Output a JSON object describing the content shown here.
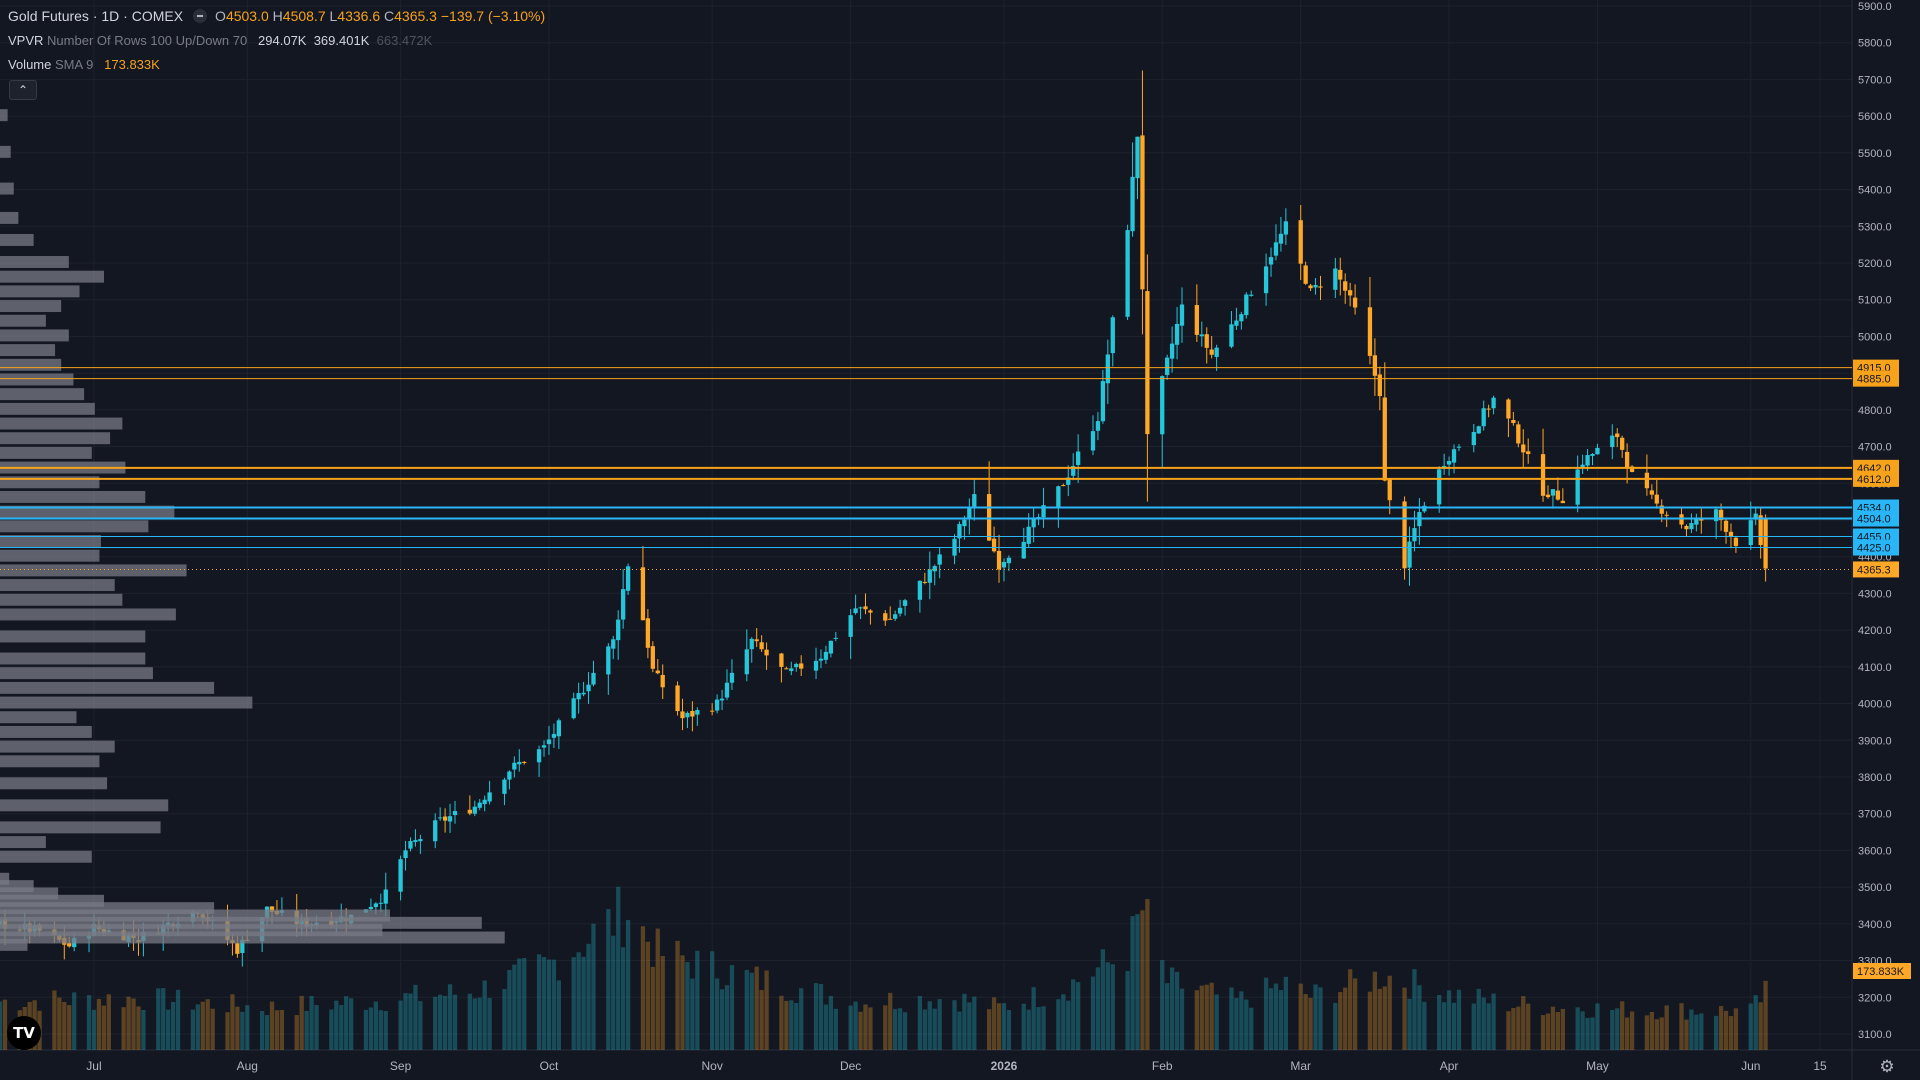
{
  "legend": {
    "symbol": "Gold Futures · 1D · COMEX",
    "ohlc": [
      {
        "k": "O",
        "v": "4503.0"
      },
      {
        "k": "H",
        "v": "4508.7"
      },
      {
        "k": "L",
        "v": "4336.6"
      },
      {
        "k": "C",
        "v": "4365.3"
      }
    ],
    "change": "−139.7 (−3.10%)",
    "vpvr_name": "VPVR",
    "vpvr_params": "Number Of Rows 100 Up/Down 70",
    "vpvr_values": [
      "294.07K",
      "369.401K"
    ],
    "vpvr_total": "663.472K",
    "volume_name": "Volume",
    "volume_params": "SMA 9",
    "volume_value": "173.833K"
  },
  "colors": {
    "background": "#131722",
    "up": "#26c6da",
    "down": "#ffa726",
    "grid": "#1e222d",
    "axis_text": "#b2b5be",
    "orange_line": "#f7a21b",
    "blue_line": "#29b6f6",
    "profile_bar": "#787b86"
  },
  "icons": {
    "collapse": "chevron-up-icon",
    "logo": "tradingview-logo",
    "settings": "gear-icon"
  },
  "collapse_glyph": "⌃",
  "logo_text": "TV",
  "gear_glyph": "⚙",
  "chart_data": {
    "type": "candlestick",
    "y_axis": {
      "min": 3040,
      "max": 5900,
      "ticks": [
        "3100.0",
        "3200.0",
        "3300.0",
        "3400.0",
        "3500.0",
        "3600.0",
        "3700.0",
        "3800.0",
        "3900.0",
        "4000.0",
        "4100.0",
        "4200.0",
        "4300.0",
        "4400.0",
        "4500.0",
        "4600.0",
        "4700.0",
        "4800.0",
        "4900.0",
        "5000.0",
        "5100.0",
        "5200.0",
        "5300.0",
        "5400.0",
        "5500.0",
        "5600.0",
        "5700.0",
        "5800.0",
        "5900.0"
      ]
    },
    "x_axis": {
      "start": "2025-06-12",
      "end": "2026-06-15",
      "labels": [
        {
          "label": "Jul",
          "date": "2025-07-01"
        },
        {
          "label": "Aug",
          "date": "2025-08-01"
        },
        {
          "label": "Sep",
          "date": "2025-09-01"
        },
        {
          "label": "Oct",
          "date": "2025-10-01"
        },
        {
          "label": "Nov",
          "date": "2025-11-03"
        },
        {
          "label": "Dec",
          "date": "2025-12-01"
        },
        {
          "label": "2026",
          "date": "2026-01-01",
          "bold": true
        },
        {
          "label": "Feb",
          "date": "2026-02-02"
        },
        {
          "label": "Mar",
          "date": "2026-03-02"
        },
        {
          "label": "Apr",
          "date": "2026-04-01"
        },
        {
          "label": "May",
          "date": "2026-05-01"
        },
        {
          "label": "Jun",
          "date": "2026-06-01"
        },
        {
          "label": "15",
          "date": "2026-06-15"
        }
      ]
    },
    "close_path": [
      [
        "2025-06-12",
        3400
      ],
      [
        "2025-06-20",
        3380
      ],
      [
        "2025-06-26",
        3340
      ],
      [
        "2025-07-01",
        3390
      ],
      [
        "2025-07-10",
        3360
      ],
      [
        "2025-07-22",
        3440
      ],
      [
        "2025-07-30",
        3330
      ],
      [
        "2025-08-05",
        3440
      ],
      [
        "2025-08-12",
        3400
      ],
      [
        "2025-08-22",
        3420
      ],
      [
        "2025-08-29",
        3480
      ],
      [
        "2025-09-02",
        3600
      ],
      [
        "2025-09-09",
        3680
      ],
      [
        "2025-09-16",
        3720
      ],
      [
        "2025-09-23",
        3820
      ],
      [
        "2025-09-30",
        3880
      ],
      [
        "2025-10-07",
        4020
      ],
      [
        "2025-10-14",
        4170
      ],
      [
        "2025-10-17",
        4380
      ],
      [
        "2025-10-20",
        4230
      ],
      [
        "2025-10-22",
        4090
      ],
      [
        "2025-10-28",
        3960
      ],
      [
        "2025-11-04",
        4000
      ],
      [
        "2025-11-11",
        4170
      ],
      [
        "2025-11-18",
        4080
      ],
      [
        "2025-11-25",
        4130
      ],
      [
        "2025-12-02",
        4260
      ],
      [
        "2025-12-09",
        4230
      ],
      [
        "2025-12-16",
        4340
      ],
      [
        "2025-12-22",
        4450
      ],
      [
        "2025-12-26",
        4560
      ],
      [
        "2025-12-31",
        4380
      ],
      [
        "2026-01-06",
        4470
      ],
      [
        "2026-01-13",
        4600
      ],
      [
        "2026-01-20",
        4780
      ],
      [
        "2026-01-26",
        5300
      ],
      [
        "2026-01-28",
        5550
      ],
      [
        "2026-01-30",
        4720
      ],
      [
        "2026-02-03",
        4930
      ],
      [
        "2026-02-06",
        5080
      ],
      [
        "2026-02-12",
        4950
      ],
      [
        "2026-02-17",
        5050
      ],
      [
        "2026-02-23",
        5200
      ],
      [
        "2026-02-27",
        5300
      ],
      [
        "2026-03-04",
        5120
      ],
      [
        "2026-03-09",
        5180
      ],
      [
        "2026-03-13",
        5070
      ],
      [
        "2026-03-18",
        4850
      ],
      [
        "2026-03-19",
        4600
      ],
      [
        "2026-03-23",
        4380
      ],
      [
        "2026-03-26",
        4520
      ],
      [
        "2026-03-31",
        4660
      ],
      [
        "2026-04-06",
        4750
      ],
      [
        "2026-04-10",
        4830
      ],
      [
        "2026-04-14",
        4750
      ],
      [
        "2026-04-20",
        4580
      ],
      [
        "2026-04-24",
        4560
      ],
      [
        "2026-04-28",
        4660
      ],
      [
        "2026-05-05",
        4730
      ],
      [
        "2026-05-08",
        4620
      ],
      [
        "2026-05-13",
        4540
      ],
      [
        "2026-05-19",
        4480
      ],
      [
        "2026-05-25",
        4520
      ],
      [
        "2026-05-29",
        4440
      ],
      [
        "2026-06-02",
        4503
      ],
      [
        "2026-06-04",
        4365.3
      ]
    ],
    "volume_path": [
      [
        "2025-06-12",
        150
      ],
      [
        "2025-07-10",
        160
      ],
      [
        "2025-08-05",
        130
      ],
      [
        "2025-08-29",
        155
      ],
      [
        "2025-09-16",
        180
      ],
      [
        "2025-10-01",
        260
      ],
      [
        "2025-10-17",
        430
      ],
      [
        "2025-10-23",
        300
      ],
      [
        "2025-11-11",
        220
      ],
      [
        "2025-12-02",
        150
      ],
      [
        "2025-12-22",
        160
      ],
      [
        "2025-12-31",
        130
      ],
      [
        "2026-01-13",
        190
      ],
      [
        "2026-01-26",
        300
      ],
      [
        "2026-01-29",
        430
      ],
      [
        "2026-02-03",
        210
      ],
      [
        "2026-02-17",
        150
      ],
      [
        "2026-02-27",
        200
      ],
      [
        "2026-03-04",
        165
      ],
      [
        "2026-03-19",
        230
      ],
      [
        "2026-04-01",
        170
      ],
      [
        "2026-04-14",
        140
      ],
      [
        "2026-05-05",
        125
      ],
      [
        "2026-06-01",
        120
      ],
      [
        "2026-06-04",
        174
      ]
    ],
    "volume_max": 800,
    "horizontal_lines": [
      {
        "price": 4915.0,
        "label": "4915.0",
        "color": "#f7a21b",
        "width": 1
      },
      {
        "price": 4885.0,
        "label": "4885.0",
        "color": "#f7a21b",
        "width": 1
      },
      {
        "price": 4642.0,
        "label": "4642.0",
        "color": "#f7a21b",
        "width": 2
      },
      {
        "price": 4612.0,
        "label": "4612.0",
        "color": "#f7a21b",
        "width": 2
      },
      {
        "price": 4534.0,
        "label": "4534.0",
        "color": "#29b6f6",
        "width": 2
      },
      {
        "price": 4504.0,
        "label": "4504.0",
        "color": "#29b6f6",
        "width": 2
      },
      {
        "price": 4455.0,
        "label": "4455.0",
        "color": "#29b6f6",
        "width": 1
      },
      {
        "price": 4425.0,
        "label": "4425.0",
        "color": "#29b6f6",
        "width": 1
      }
    ],
    "last_price": {
      "price": 4365.3,
      "label": "4365.3"
    },
    "volume_sma": {
      "label": "173.833K"
    },
    "volume_profile": [
      {
        "price": 3340,
        "volume": 18
      },
      {
        "price": 3360,
        "volume": 330
      },
      {
        "price": 3380,
        "volume": 250
      },
      {
        "price": 3400,
        "volume": 315
      },
      {
        "price": 3420,
        "volume": 255
      },
      {
        "price": 3440,
        "volume": 140
      },
      {
        "price": 3460,
        "volume": 68
      },
      {
        "price": 3480,
        "volume": 38
      },
      {
        "price": 3500,
        "volume": 22
      },
      {
        "price": 3520,
        "volume": 6
      },
      {
        "price": 3580,
        "volume": 60
      },
      {
        "price": 3620,
        "volume": 30
      },
      {
        "price": 3660,
        "volume": 105
      },
      {
        "price": 3720,
        "volume": 110
      },
      {
        "price": 3780,
        "volume": 70
      },
      {
        "price": 3840,
        "volume": 65
      },
      {
        "price": 3880,
        "volume": 75
      },
      {
        "price": 3920,
        "volume": 60
      },
      {
        "price": 3960,
        "volume": 50
      },
      {
        "price": 4000,
        "volume": 165
      },
      {
        "price": 4040,
        "volume": 140
      },
      {
        "price": 4080,
        "volume": 100
      },
      {
        "price": 4120,
        "volume": 95
      },
      {
        "price": 4180,
        "volume": 95
      },
      {
        "price": 4240,
        "volume": 115
      },
      {
        "price": 4280,
        "volume": 80
      },
      {
        "price": 4320,
        "volume": 75
      },
      {
        "price": 4360,
        "volume": 122
      },
      {
        "price": 4400,
        "volume": 65
      },
      {
        "price": 4440,
        "volume": 66
      },
      {
        "price": 4480,
        "volume": 97
      },
      {
        "price": 4520,
        "volume": 114
      },
      {
        "price": 4560,
        "volume": 95
      },
      {
        "price": 4600,
        "volume": 65
      },
      {
        "price": 4640,
        "volume": 82
      },
      {
        "price": 4680,
        "volume": 60
      },
      {
        "price": 4720,
        "volume": 72
      },
      {
        "price": 4760,
        "volume": 80
      },
      {
        "price": 4800,
        "volume": 62
      },
      {
        "price": 4840,
        "volume": 55
      },
      {
        "price": 4880,
        "volume": 48
      },
      {
        "price": 4920,
        "volume": 40
      },
      {
        "price": 4960,
        "volume": 36
      },
      {
        "price": 5000,
        "volume": 45
      },
      {
        "price": 5040,
        "volume": 30
      },
      {
        "price": 5080,
        "volume": 40
      },
      {
        "price": 5120,
        "volume": 52
      },
      {
        "price": 5160,
        "volume": 68
      },
      {
        "price": 5200,
        "volume": 45
      },
      {
        "price": 5260,
        "volume": 22
      },
      {
        "price": 5320,
        "volume": 12
      },
      {
        "price": 5400,
        "volume": 9
      },
      {
        "price": 5500,
        "volume": 7
      },
      {
        "price": 5600,
        "volume": 5
      }
    ],
    "profile_max_volume": 340
  }
}
